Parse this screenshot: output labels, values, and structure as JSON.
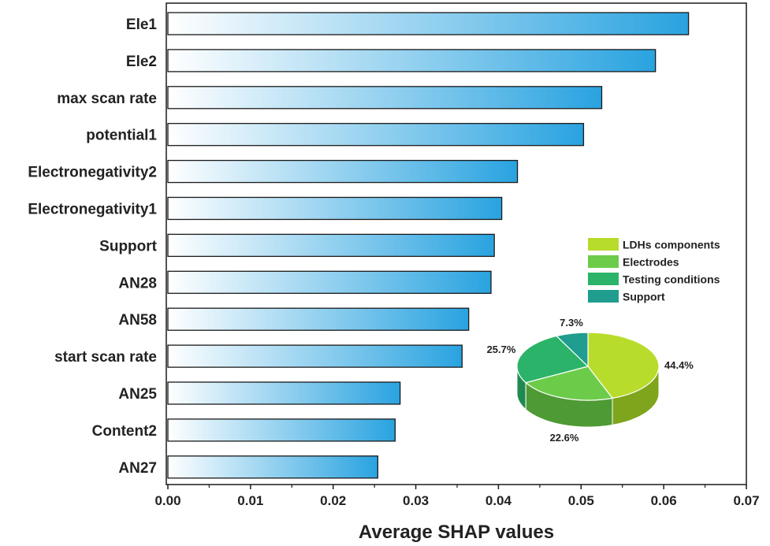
{
  "chart_data": [
    {
      "type": "bar",
      "orientation": "horizontal",
      "categories": [
        "Ele1",
        "Ele2",
        "max scan rate",
        "potential1",
        "Electronegativity2",
        "Electronegativity1",
        "Support",
        "AN28",
        "AN58",
        "start scan rate",
        "AN25",
        "Content2",
        "AN27"
      ],
      "values": [
        0.063,
        0.059,
        0.0525,
        0.0503,
        0.0423,
        0.0404,
        0.0395,
        0.0391,
        0.0364,
        0.0356,
        0.0281,
        0.0275,
        0.0254
      ],
      "xlabel": "Average SHAP values",
      "ylabel": "",
      "xlim": [
        0,
        0.07
      ],
      "xticks": [
        "0.00",
        "0.01",
        "0.02",
        "0.03",
        "0.04",
        "0.05",
        "0.06",
        "0.07"
      ],
      "grid": false,
      "colors": {
        "bar_start": "#ffffff",
        "bar_end": "#29a3e0",
        "bar_edge": "#1a1a1a"
      }
    },
    {
      "type": "pie",
      "labels": [
        "LDHs components",
        "Electrodes",
        "Testing conditions",
        "Support"
      ],
      "values": [
        44.4,
        22.6,
        25.7,
        7.3
      ],
      "value_labels": [
        "44.4%",
        "22.6%",
        "25.7%",
        "7.3%"
      ],
      "colors": [
        "#b8dc2c",
        "#6ccc4a",
        "#2bb36a",
        "#1f9d8e"
      ],
      "side_colors": [
        "#7fa51c",
        "#4e9a34",
        "#1f8a50",
        "#16786c"
      ],
      "legend": [
        "LDHs components",
        "Electrodes",
        "Testing conditions",
        "Support"
      ],
      "legend_position": "right, inside plot"
    }
  ]
}
